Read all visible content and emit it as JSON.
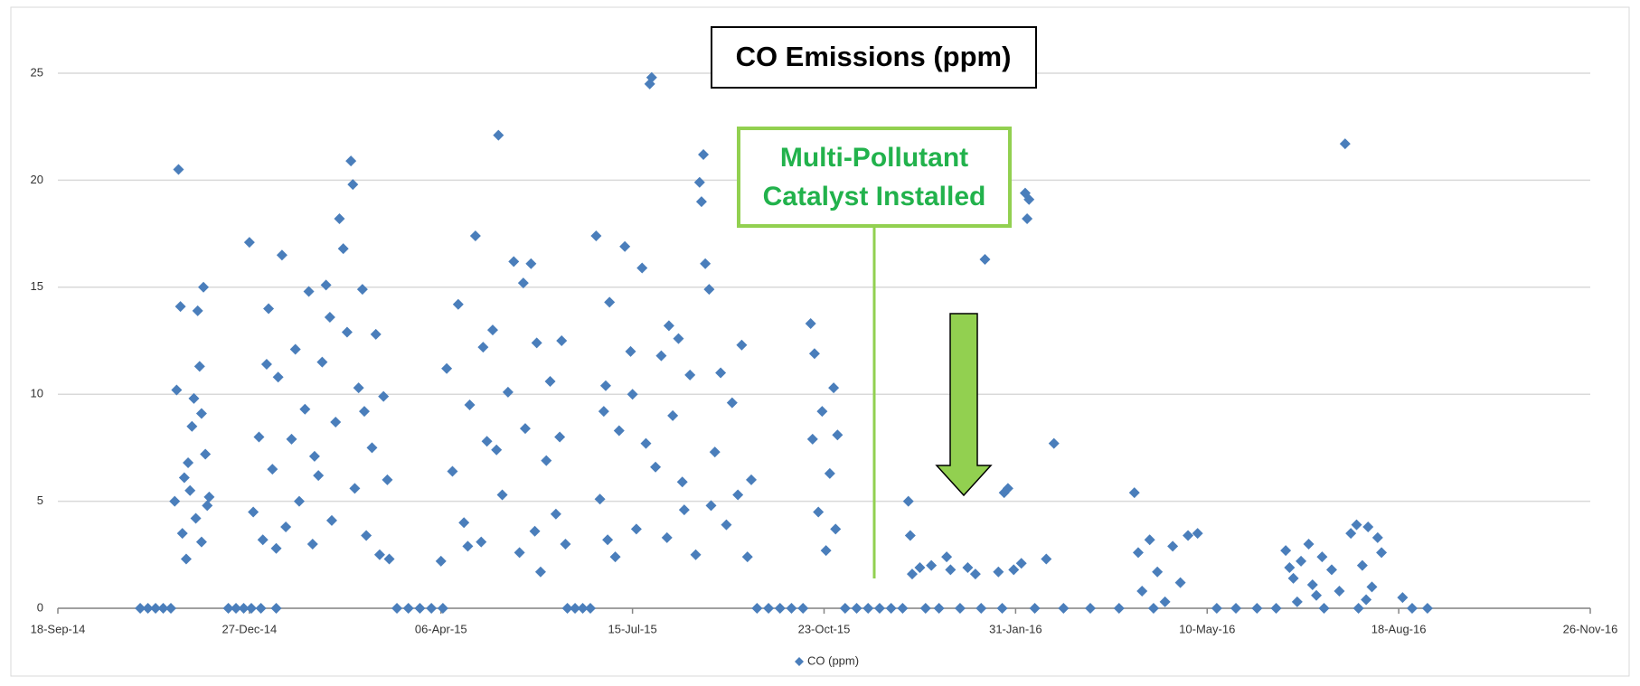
{
  "chart_data": {
    "type": "scatter",
    "title": "CO Emissions (ppm)",
    "annotation": [
      "Multi-Pollutant",
      "Catalyst Installed"
    ],
    "grid": true,
    "legend": "bottom",
    "xlim": [
      "2014-09-18",
      "2016-11-26"
    ],
    "xticks": [
      {
        "value": "2014-09-18",
        "label": "18-Sep-14"
      },
      {
        "value": "2014-12-27",
        "label": "27-Dec-14"
      },
      {
        "value": "2015-04-06",
        "label": "06-Apr-15"
      },
      {
        "value": "2015-07-15",
        "label": "15-Jul-15"
      },
      {
        "value": "2015-10-23",
        "label": "23-Oct-15"
      },
      {
        "value": "2016-01-31",
        "label": "31-Jan-16"
      },
      {
        "value": "2016-05-10",
        "label": "10-May-16"
      },
      {
        "value": "2016-08-18",
        "label": "18-Aug-16"
      },
      {
        "value": "2016-11-26",
        "label": "26-Nov-16"
      }
    ],
    "ylim": [
      0,
      25
    ],
    "yticks": [
      0,
      5,
      10,
      15,
      20,
      25
    ],
    "series": [
      {
        "name": "CO (ppm)",
        "color": "#4a7ebb",
        "x": [
          "2014-10-31",
          "2014-11-04",
          "2014-11-08",
          "2014-11-12",
          "2014-11-16",
          "2014-12-16",
          "2014-12-20",
          "2014-12-24",
          "2014-12-28",
          "2015-01-02",
          "2014-11-18",
          "2014-11-19",
          "2014-11-20",
          "2014-11-21",
          "2014-11-22",
          "2014-11-25",
          "2014-11-27",
          "2014-11-29",
          "2014-12-01",
          "2014-12-03",
          "2014-11-24",
          "2014-11-26",
          "2014-11-28",
          "2014-11-30",
          "2014-12-02",
          "2014-12-04",
          "2014-12-05",
          "2014-11-23",
          "2014-12-02",
          "2014-12-06",
          "2014-12-27",
          "2014-12-29",
          "2015-01-01",
          "2015-01-03",
          "2015-01-06",
          "2015-01-08",
          "2015-01-11",
          "2015-01-13",
          "2015-01-15",
          "2015-01-18",
          "2015-01-20",
          "2015-01-22",
          "2015-01-25",
          "2015-01-27",
          "2015-01-29",
          "2015-02-01",
          "2015-02-03",
          "2015-02-05",
          "2015-02-08",
          "2015-02-10",
          "2015-02-12",
          "2015-02-14",
          "2015-02-16",
          "2015-02-18",
          "2015-02-19",
          "2015-02-20",
          "2015-02-22",
          "2015-02-24",
          "2015-02-26",
          "2015-03-01",
          "2015-03-03",
          "2015-03-05",
          "2015-03-07",
          "2015-03-09",
          "2015-03-10",
          "2015-01-10",
          "2015-02-07",
          "2015-01-30",
          "2015-02-25",
          "2015-01-05",
          "2015-03-14",
          "2015-03-20",
          "2015-03-26",
          "2015-04-01",
          "2015-04-07",
          "2015-06-11",
          "2015-06-15",
          "2015-06-19",
          "2015-06-23",
          "2015-01-10",
          "2015-04-06",
          "2015-04-09",
          "2015-04-12",
          "2015-04-15",
          "2015-04-18",
          "2015-04-21",
          "2015-04-24",
          "2015-04-27",
          "2015-04-30",
          "2015-05-03",
          "2015-05-06",
          "2015-05-08",
          "2015-05-11",
          "2015-05-14",
          "2015-05-17",
          "2015-05-20",
          "2015-05-23",
          "2015-05-26",
          "2015-05-28",
          "2015-05-31",
          "2015-06-02",
          "2015-06-05",
          "2015-06-08",
          "2015-06-10",
          "2015-05-05",
          "2015-04-20",
          "2015-05-19",
          "2015-05-25",
          "2015-04-28",
          "2015-06-07",
          "2015-06-26",
          "2015-06-28",
          "2015-07-01",
          "2015-07-03",
          "2015-07-06",
          "2015-07-08",
          "2015-07-11",
          "2015-07-14",
          "2015-07-17",
          "2015-07-20",
          "2015-07-24",
          "2015-07-25",
          "2015-07-27",
          "2015-07-30",
          "2015-08-02",
          "2015-08-05",
          "2015-08-08",
          "2015-08-11",
          "2015-08-14",
          "2015-08-17",
          "2015-08-19",
          "2015-08-20",
          "2015-08-21",
          "2015-08-22",
          "2015-08-24",
          "2015-08-27",
          "2015-08-30",
          "2015-09-02",
          "2015-09-05",
          "2015-09-10",
          "2015-09-13",
          "2015-09-15",
          "2015-07-02",
          "2015-07-22",
          "2015-08-10",
          "2015-06-30",
          "2015-08-25",
          "2015-07-15",
          "2015-08-03",
          "2015-09-08",
          "2015-09-18",
          "2015-09-24",
          "2015-09-30",
          "2015-10-06",
          "2015-10-12",
          "2015-11-03",
          "2015-11-09",
          "2015-11-15",
          "2015-11-21",
          "2015-11-27",
          "2015-10-16",
          "2015-10-17",
          "2015-10-18",
          "2015-10-20",
          "2015-10-22",
          "2015-10-24",
          "2015-10-26",
          "2015-10-28",
          "2015-10-29",
          "2015-10-30",
          "2015-12-06",
          "2015-12-07",
          "2015-12-08",
          "2015-12-12",
          "2015-12-18",
          "2015-12-26",
          "2015-12-28",
          "2016-01-06",
          "2016-01-10",
          "2016-01-15",
          "2016-01-22",
          "2016-01-25",
          "2016-01-27",
          "2016-01-30",
          "2016-02-03",
          "2016-02-05",
          "2016-02-06",
          "2016-02-07",
          "2016-02-16",
          "2016-02-20",
          "2015-12-03",
          "2015-12-15",
          "2015-12-22",
          "2016-01-02",
          "2016-01-13",
          "2016-01-24",
          "2016-02-10",
          "2016-02-25",
          "2016-03-10",
          "2016-03-25",
          "2016-04-02",
          "2016-04-04",
          "2016-04-06",
          "2016-04-10",
          "2016-04-14",
          "2016-04-18",
          "2016-04-22",
          "2016-04-26",
          "2016-04-30",
          "2016-05-05",
          "2016-05-15",
          "2016-05-25",
          "2016-06-05",
          "2016-06-15",
          "2016-08-25",
          "2016-09-02",
          "2016-08-20",
          "2016-04-12",
          "2016-07-10",
          "2016-07-28",
          "2016-06-20",
          "2016-06-24",
          "2016-06-28",
          "2016-07-02",
          "2016-07-06",
          "2016-07-09",
          "2016-07-14",
          "2016-07-21",
          "2016-07-24",
          "2016-07-27",
          "2016-07-30",
          "2016-08-02",
          "2016-08-04",
          "2016-08-07",
          "2016-08-09",
          "2016-06-26",
          "2016-07-18",
          "2016-08-01",
          "2016-07-04",
          "2016-06-22"
        ],
        "values": [
          0,
          0,
          0,
          0,
          0,
          0,
          0,
          0,
          0,
          0,
          5,
          10.2,
          20.5,
          14.1,
          3.5,
          6.8,
          8.5,
          4.2,
          11.3,
          15.0,
          2.3,
          5.5,
          9.8,
          13.9,
          3.1,
          7.2,
          4.8,
          6.1,
          9.1,
          5.2,
          17.1,
          4.5,
          8.0,
          3.2,
          14.0,
          6.5,
          10.8,
          16.5,
          3.8,
          7.9,
          12.1,
          5.0,
          9.3,
          14.8,
          3.0,
          6.2,
          11.5,
          15.1,
          4.1,
          8.7,
          18.2,
          16.8,
          12.9,
          20.9,
          19.8,
          5.6,
          10.3,
          14.9,
          3.4,
          7.5,
          12.8,
          2.5,
          9.9,
          6.0,
          2.3,
          2.8,
          13.6,
          7.1,
          9.2,
          11.4,
          0,
          0,
          0,
          0,
          0,
          0,
          0,
          0,
          0,
          0,
          2.2,
          11.2,
          6.4,
          14.2,
          4.0,
          9.5,
          17.4,
          3.1,
          7.8,
          13.0,
          22.1,
          5.3,
          10.1,
          16.2,
          2.6,
          8.4,
          16.1,
          12.4,
          1.7,
          6.9,
          10.6,
          4.4,
          12.5,
          3.0,
          7.4,
          2.9,
          15.2,
          3.6,
          12.2,
          8.0,
          17.4,
          5.1,
          10.4,
          14.3,
          2.4,
          8.3,
          16.9,
          12.0,
          3.7,
          15.9,
          24.5,
          24.8,
          6.6,
          11.8,
          3.3,
          9.0,
          12.6,
          4.6,
          10.9,
          2.5,
          19.9,
          19.0,
          21.2,
          16.1,
          14.9,
          7.3,
          11.0,
          3.9,
          9.6,
          12.3,
          2.4,
          6.0,
          3.2,
          7.7,
          5.9,
          9.2,
          4.8,
          10.0,
          13.2,
          5.3,
          0,
          0,
          0,
          0,
          0,
          0,
          0,
          0,
          0,
          0,
          13.3,
          7.9,
          11.9,
          4.5,
          9.2,
          2.7,
          6.3,
          10.3,
          3.7,
          8.1,
          5.0,
          3.4,
          1.6,
          1.9,
          2.0,
          2.4,
          1.8,
          1.9,
          1.6,
          16.3,
          1.7,
          5.4,
          5.6,
          1.8,
          2.1,
          19.4,
          18.2,
          19.1,
          2.3,
          7.7,
          0,
          0,
          0,
          0,
          0,
          0,
          0,
          0,
          0,
          0,
          5.4,
          2.6,
          0.8,
          3.2,
          1.7,
          0.3,
          2.9,
          1.2,
          3.4,
          3.5,
          0,
          0,
          0,
          0,
          0,
          0,
          0.5,
          0,
          0,
          0,
          2.7,
          1.4,
          2.2,
          3.0,
          0.6,
          2.4,
          1.8,
          21.7,
          3.5,
          3.9,
          2.0,
          3.8,
          1.0,
          3.3,
          2.6,
          0.3,
          0.8,
          0.4,
          1.1,
          1.9
        ]
      }
    ]
  }
}
